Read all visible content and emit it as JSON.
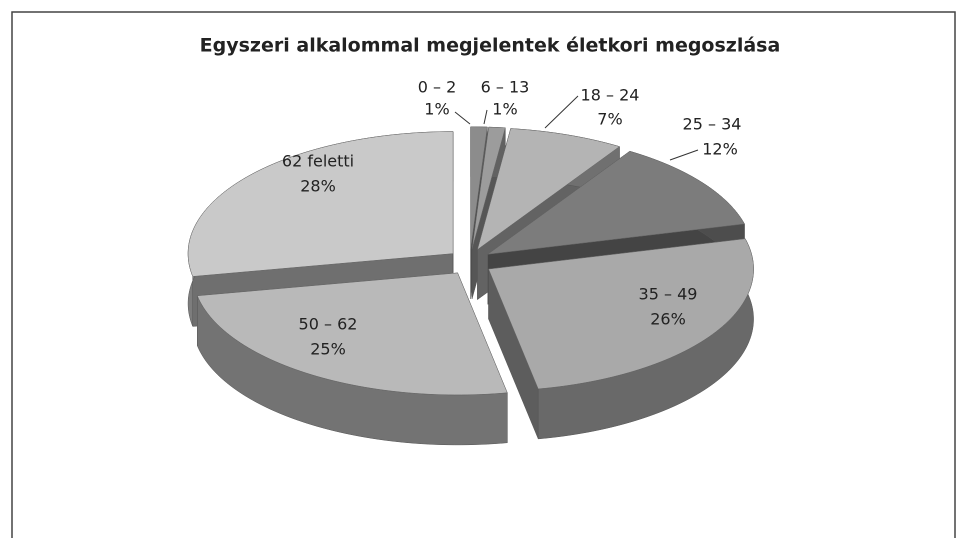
{
  "chart_data": {
    "type": "pie",
    "title": "Egyszeri alkalommal megjelentek életkori megoszlása",
    "categories": [
      "0 – 2",
      "6 – 13",
      "18 – 24",
      "25 – 34",
      "35 – 49",
      "50 – 62",
      "62 feletti"
    ],
    "values": [
      1,
      1,
      7,
      12,
      26,
      25,
      28
    ],
    "value_labels": [
      "1%",
      "1%",
      "7%",
      "12%",
      "26%",
      "25%",
      "28%"
    ],
    "colors": [
      "#8c8c8c",
      "#9c9c9c",
      "#b4b4b4",
      "#7c7c7c",
      "#a9a9a9",
      "#b9b9b9",
      "#c9c9c9"
    ]
  }
}
